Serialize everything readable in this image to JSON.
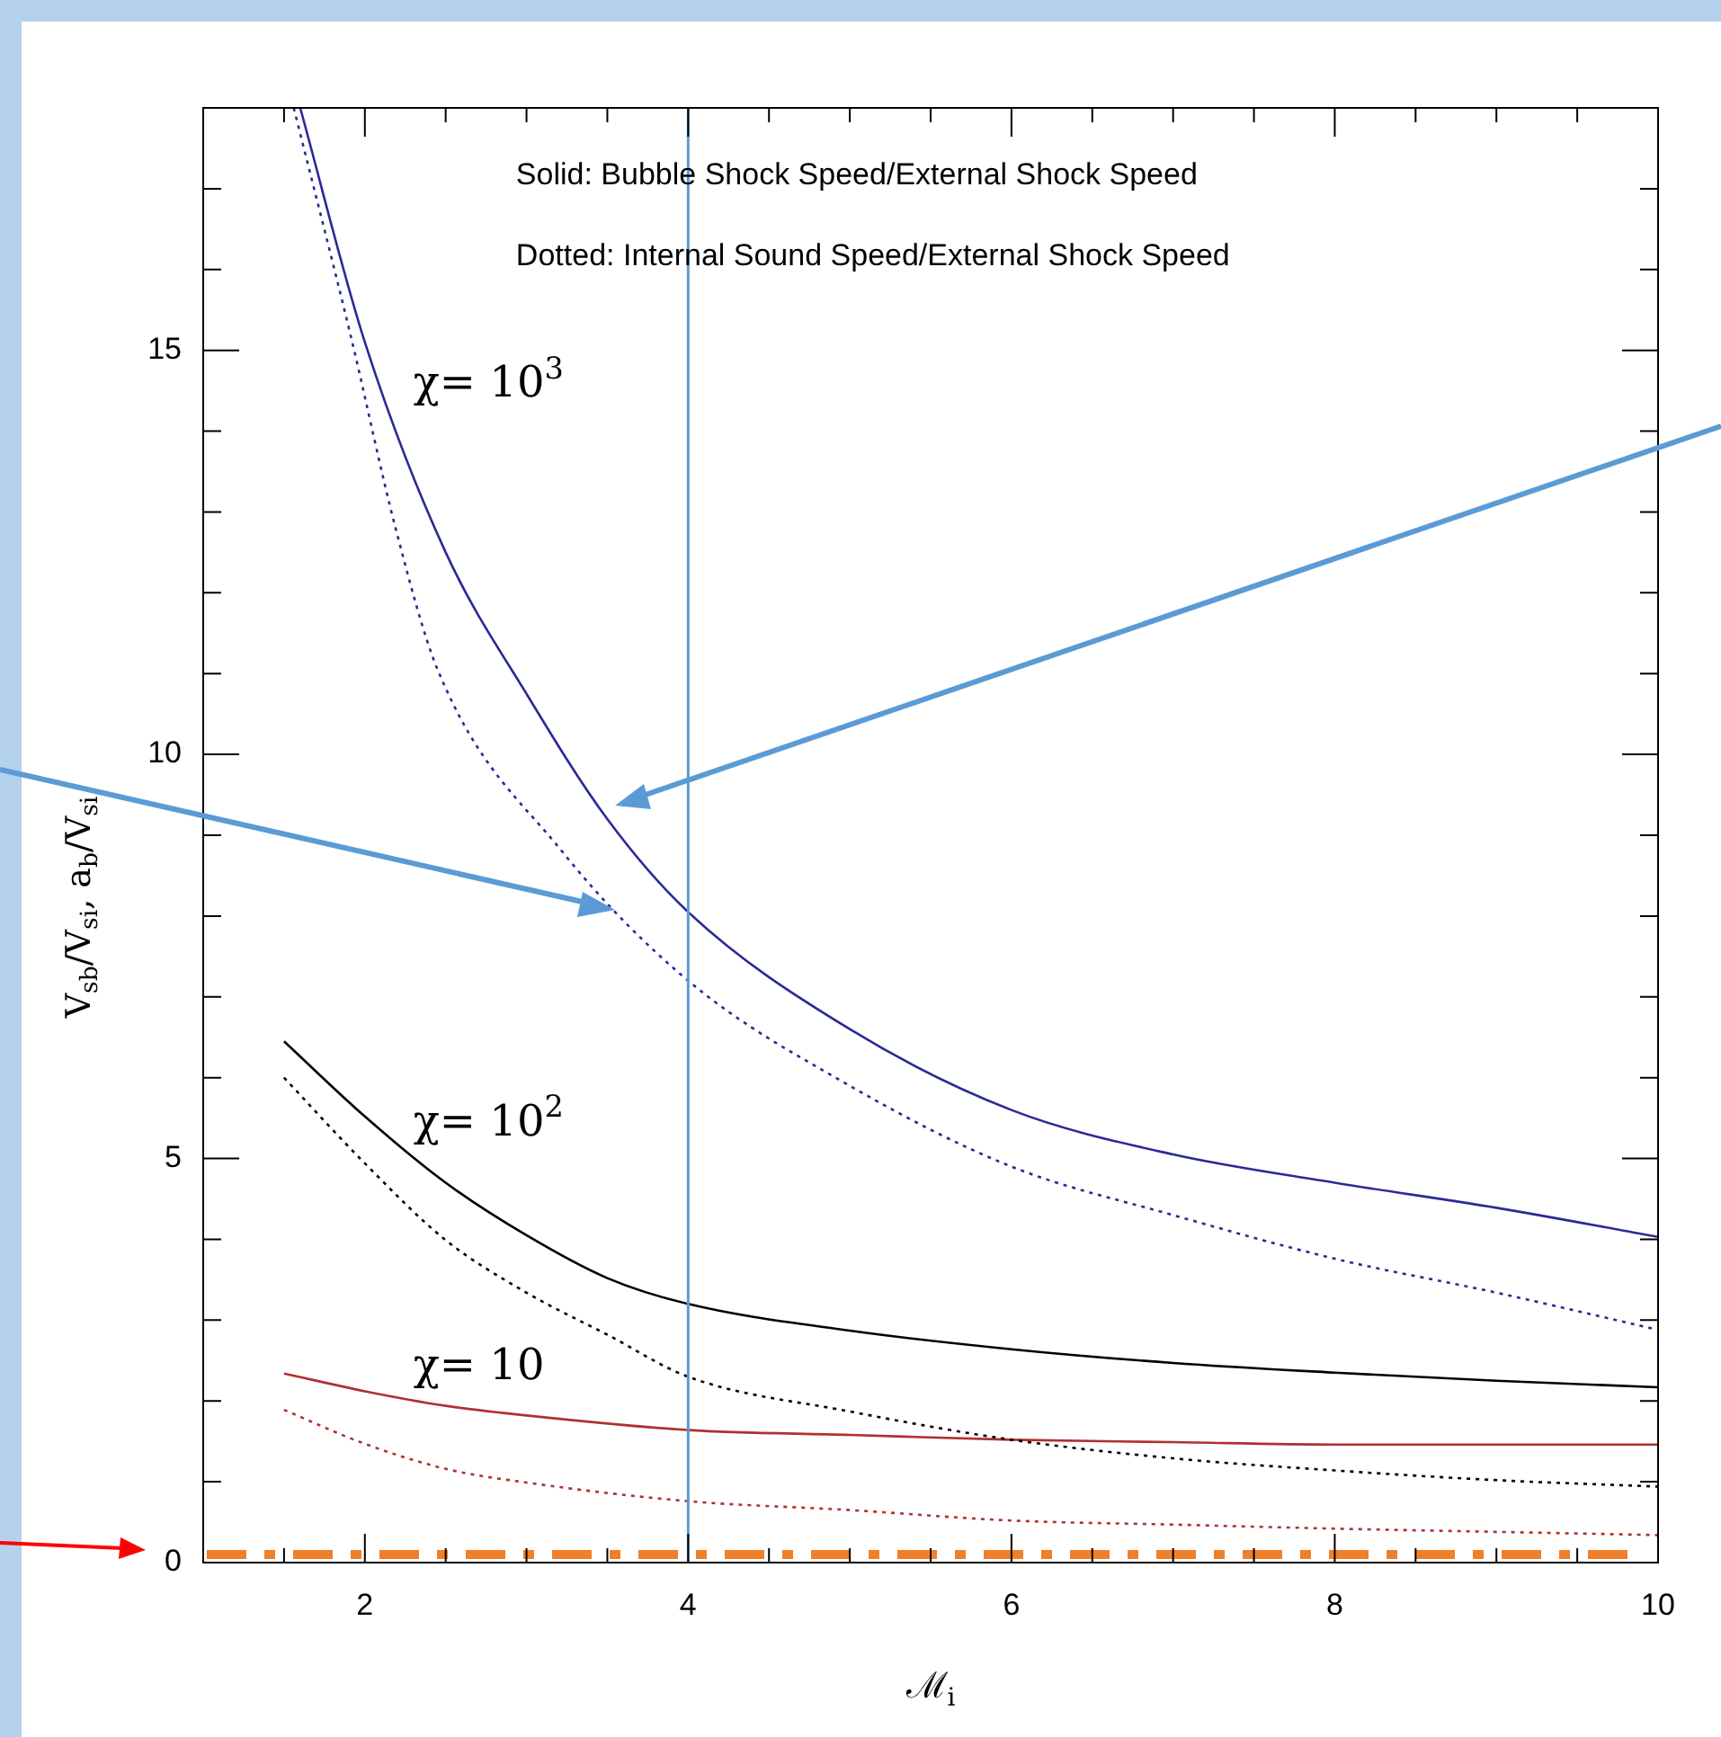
{
  "chart_data": {
    "type": "line",
    "xlabel": "ℳ$_{i}$",
    "ylabel": "V$_{sb}$/V$_{si}$, a$_{b}$/V$_{si}$",
    "xlim": [
      1,
      10
    ],
    "ylim": [
      0,
      18
    ],
    "xticks": [
      {
        "value": 1.5,
        "label": null
      },
      2,
      {
        "value": 2.5,
        "label": null
      },
      {
        "value": 3,
        "label": null
      },
      {
        "value": 3.5,
        "label": null
      },
      4,
      {
        "value": 4.5,
        "label": null
      },
      {
        "value": 5,
        "label": null
      },
      {
        "value": 5.5,
        "label": null
      },
      6,
      {
        "value": 6.5,
        "label": null
      },
      {
        "value": 7,
        "label": null
      },
      {
        "value": 7.5,
        "label": null
      },
      8,
      {
        "value": 8.5,
        "label": null
      },
      {
        "value": 9,
        "label": null
      },
      {
        "value": 9.5,
        "label": null
      },
      10
    ],
    "yticks": [
      0,
      {
        "value": 1,
        "label": null
      },
      {
        "value": 2,
        "label": null
      },
      {
        "value": 3,
        "label": null
      },
      {
        "value": 4,
        "label": null
      },
      5,
      {
        "value": 6,
        "label": null
      },
      {
        "value": 7,
        "label": null
      },
      {
        "value": 8,
        "label": null
      },
      {
        "value": 9,
        "label": null
      },
      10,
      {
        "value": 11,
        "label": null
      },
      {
        "value": 12,
        "label": null
      },
      {
        "value": 13,
        "label": null
      },
      {
        "value": 14,
        "label": null
      },
      15,
      {
        "value": 16,
        "label": null
      },
      {
        "value": 17,
        "label": null
      }
    ],
    "series": [
      {
        "name": "χ= 10$^{3}$",
        "color": "#2a2a96",
        "line_style": "solid",
        "x": [
          1.6,
          2,
          2.5,
          3,
          3.5,
          4,
          5,
          6,
          7,
          8,
          9,
          10
        ],
        "values": [
          18,
          15.1,
          12.5,
          10.75,
          9.2,
          8.05,
          6.6,
          5.6,
          5.05,
          4.7,
          4.39,
          4.03
        ]
      },
      {
        "color": "#2a2a96",
        "line_style": "dotted",
        "x": [
          1.56,
          1.91,
          2.19,
          2.45,
          3.22,
          4,
          5,
          6,
          7,
          8,
          9,
          10
        ],
        "values": [
          18,
          15.2,
          12.8,
          11.05,
          8.8,
          7.2,
          5.9,
          4.9,
          4.3,
          3.76,
          3.34,
          2.88
        ]
      },
      {
        "name": "χ= 10$^{2}$",
        "color": "#000000",
        "line_style": "solid",
        "x": [
          1.5,
          2,
          2.5,
          3,
          3.5,
          4,
          5,
          6,
          7,
          8,
          9,
          10
        ],
        "values": [
          6.45,
          5.52,
          4.7,
          4.05,
          3.52,
          3.2,
          2.87,
          2.64,
          2.47,
          2.35,
          2.25,
          2.17
        ]
      },
      {
        "color": "#000000",
        "line_style": "dotted",
        "x": [
          1.5,
          2,
          2.5,
          3,
          3.5,
          4,
          5,
          6,
          7,
          8,
          9,
          10
        ],
        "values": [
          6,
          4.94,
          3.99,
          3.34,
          2.82,
          2.3,
          1.87,
          1.52,
          1.29,
          1.14,
          1.02,
          0.94
        ]
      },
      {
        "name": "χ= 10",
        "color": "#b03030",
        "line_style": "solid",
        "x": [
          1.5,
          2,
          2.5,
          3,
          4,
          5,
          6,
          7,
          8,
          10
        ],
        "values": [
          2.34,
          2.12,
          1.94,
          1.82,
          1.64,
          1.58,
          1.52,
          1.49,
          1.46,
          1.46
        ]
      },
      {
        "color": "#b03030",
        "line_style": "dotted",
        "x": [
          1.5,
          2,
          2.5,
          3,
          4,
          5,
          6,
          7,
          8,
          9,
          10
        ],
        "values": [
          1.89,
          1.47,
          1.16,
          0.99,
          0.76,
          0.65,
          0.52,
          0.47,
          0.42,
          0.38,
          0.34
        ]
      }
    ],
    "ref_lines": [
      {
        "axis": "x",
        "value": 4,
        "color": "#5b9bd5",
        "line_style": "solid"
      },
      {
        "axis": "y",
        "value": 0.1,
        "color": "#f07f2a",
        "line_style": "dashed"
      }
    ],
    "annotations": [
      "Solid: Bubble Shock Speed/External Shock Speed",
      "Dotted: Internal Sound Speed/External Shock Speed"
    ]
  }
}
